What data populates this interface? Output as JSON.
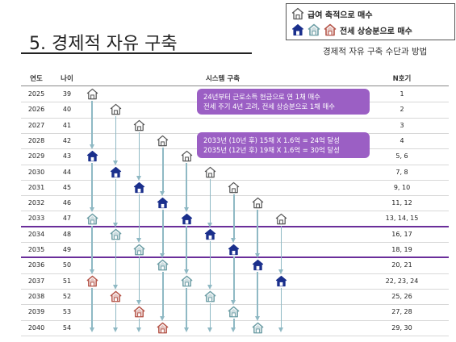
{
  "title": "5. 경제적 자유 구축",
  "subtitle": "경제적 자유 구축 수단과 방법",
  "legend": {
    "salary_label": "급여 축적으로 매수",
    "jeonse_label": "전세 상승분으로 매수"
  },
  "headers": {
    "year": "연도",
    "age": "나이",
    "system": "시스템 구축",
    "nho": "N호기"
  },
  "rows": [
    {
      "year": "2025",
      "age": "39",
      "nho": "1"
    },
    {
      "year": "2026",
      "age": "40",
      "nho": "2"
    },
    {
      "year": "2027",
      "age": "41",
      "nho": "3"
    },
    {
      "year": "2028",
      "age": "42",
      "nho": "4"
    },
    {
      "year": "2029",
      "age": "43",
      "nho": "5, 6"
    },
    {
      "year": "2030",
      "age": "44",
      "nho": "7, 8"
    },
    {
      "year": "2031",
      "age": "45",
      "nho": "9, 10"
    },
    {
      "year": "2032",
      "age": "46",
      "nho": "11, 12"
    },
    {
      "year": "2033",
      "age": "47",
      "nho": "13, 14, 15"
    },
    {
      "year": "2034",
      "age": "48",
      "nho": "16, 17"
    },
    {
      "year": "2035",
      "age": "49",
      "nho": "18, 19"
    },
    {
      "year": "2036",
      "age": "50",
      "nho": "20, 21"
    },
    {
      "year": "2037",
      "age": "51",
      "nho": "22, 23, 24"
    },
    {
      "year": "2038",
      "age": "52",
      "nho": "25, 26"
    },
    {
      "year": "2039",
      "age": "53",
      "nho": "27, 28"
    },
    {
      "year": "2040",
      "age": "54",
      "nho": "29, 30"
    }
  ],
  "callout1": {
    "line1": "24년부터 근로소득 현금으로 연 1채 매수",
    "line2": "전세 주기 4년 고려, 전세 상승분으로 1채 매수"
  },
  "callout2": {
    "line1": "2033년 (10년 후) 15채 X 1.6억 = 24억 달성",
    "line2": "2035년 (12년 후) 19채 X 1.6억 = 30억 달성"
  },
  "colors": {
    "outline": "#555555",
    "blue": "#1a2f8c",
    "teal": "#6f9fa6",
    "red": "#b5564a",
    "purple": "#6a2e9a",
    "callout": "#9b5fc4",
    "arrow": "#8fb9c4"
  },
  "icons": {
    "outline": "house-outline-icon",
    "blue": "house-blue-icon",
    "teal": "house-teal-icon",
    "red": "house-red-icon"
  },
  "chains": [
    [
      [
        0,
        "outline"
      ],
      [
        4,
        "blue"
      ],
      [
        8,
        "teal"
      ],
      [
        12,
        "red"
      ]
    ],
    [
      [
        1,
        "outline"
      ],
      [
        5,
        "blue"
      ],
      [
        9,
        "teal"
      ],
      [
        13,
        "red"
      ]
    ],
    [
      [
        2,
        "outline"
      ],
      [
        6,
        "blue"
      ],
      [
        10,
        "teal"
      ],
      [
        14,
        "red"
      ]
    ],
    [
      [
        3,
        "outline"
      ],
      [
        7,
        "blue"
      ],
      [
        11,
        "teal"
      ],
      [
        15,
        "red"
      ]
    ],
    [
      [
        4,
        "outline"
      ],
      [
        8,
        "blue"
      ],
      [
        12,
        "teal"
      ]
    ],
    [
      [
        5,
        "outline"
      ],
      [
        9,
        "blue"
      ],
      [
        13,
        "teal"
      ]
    ],
    [
      [
        6,
        "outline"
      ],
      [
        10,
        "blue"
      ],
      [
        14,
        "teal"
      ]
    ],
    [
      [
        7,
        "outline"
      ],
      [
        11,
        "blue"
      ],
      [
        15,
        "teal"
      ]
    ],
    [
      [
        8,
        "outline"
      ],
      [
        12,
        "blue"
      ]
    ]
  ]
}
